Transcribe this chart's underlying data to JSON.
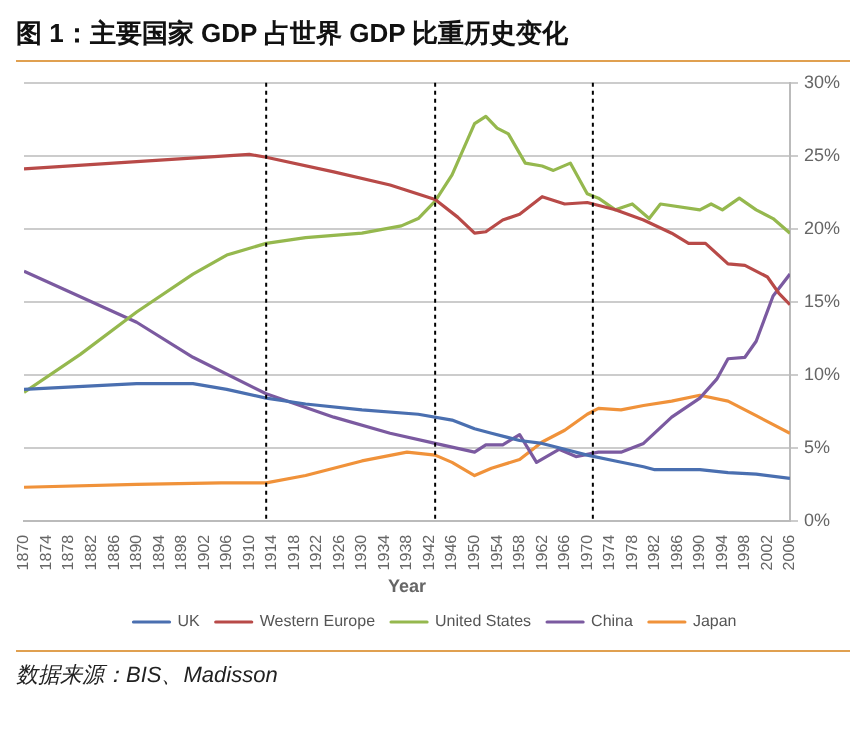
{
  "chart_data": {
    "type": "line",
    "title": "图 1：主要国家 GDP 占世界 GDP 比重历史变化",
    "xlabel": "Year",
    "annotations": [
      "数据来源：BIS、Madisson"
    ],
    "xlim": [
      1870,
      2006
    ],
    "xticks": [
      1870,
      1874,
      1878,
      1882,
      1886,
      1890,
      1894,
      1898,
      1902,
      1906,
      1910,
      1914,
      1918,
      1922,
      1926,
      1930,
      1934,
      1938,
      1942,
      1946,
      1950,
      1954,
      1958,
      1962,
      1966,
      1970,
      1974,
      1978,
      1982,
      1986,
      1990,
      1994,
      1998,
      2002,
      2006
    ],
    "ylim": [
      0,
      30
    ],
    "yticks": [
      {
        "value": 0,
        "label": "0%"
      },
      {
        "value": 5,
        "label": "5%"
      },
      {
        "value": 10,
        "label": "10%"
      },
      {
        "value": 15,
        "label": "15%"
      },
      {
        "value": 20,
        "label": "20%"
      },
      {
        "value": 25,
        "label": "25%"
      },
      {
        "value": 30,
        "label": "30%"
      }
    ],
    "grid": "y",
    "legend": "bottom",
    "marker": "none",
    "line_style": "solid",
    "ref_lines": [
      {
        "axis": "x",
        "value": 1913,
        "color": "#000000",
        "line_style": "dotted"
      },
      {
        "axis": "x",
        "value": 1943,
        "color": "#000000",
        "line_style": "dotted"
      },
      {
        "axis": "x",
        "value": 1971,
        "color": "#000000",
        "line_style": "dotted"
      }
    ],
    "series": [
      {
        "name": "UK",
        "color": "#4a6fb0",
        "x": [
          1870,
          1890,
          1900,
          1906,
          1913,
          1920,
          1930,
          1940,
          1946,
          1950,
          1953,
          1958,
          1962,
          1966,
          1970,
          1975,
          1980,
          1982,
          1990,
          1995,
          2000,
          2006
        ],
        "values": [
          9.0,
          9.4,
          9.4,
          9.0,
          8.4,
          8.0,
          7.6,
          7.3,
          6.9,
          6.3,
          6.0,
          5.5,
          5.3,
          4.9,
          4.5,
          4.1,
          3.7,
          3.5,
          3.5,
          3.3,
          3.2,
          2.9
        ]
      },
      {
        "name": "Western Europe",
        "color": "#b84a48",
        "x": [
          1870,
          1890,
          1910,
          1913,
          1925,
          1935,
          1943,
          1947,
          1950,
          1952,
          1955,
          1958,
          1962,
          1966,
          1970,
          1975,
          1980,
          1985,
          1988,
          1991,
          1995,
          1998,
          2002,
          2004,
          2006
        ],
        "values": [
          24.1,
          24.6,
          25.1,
          24.9,
          23.9,
          23.0,
          22.0,
          20.8,
          19.7,
          19.8,
          20.6,
          21.0,
          22.2,
          21.7,
          21.8,
          21.3,
          20.6,
          19.7,
          19.0,
          19.0,
          17.6,
          17.5,
          16.7,
          15.6,
          14.8
        ]
      },
      {
        "name": "United States",
        "color": "#95b84e",
        "x": [
          1870,
          1880,
          1890,
          1900,
          1906,
          1913,
          1920,
          1930,
          1937,
          1940,
          1943,
          1946,
          1950,
          1952,
          1954,
          1956,
          1959,
          1962,
          1964,
          1967,
          1970,
          1972,
          1975,
          1978,
          1981,
          1983,
          1990,
          1992,
          1994,
          1997,
          2000,
          2003,
          2006
        ],
        "values": [
          8.8,
          11.4,
          14.3,
          16.9,
          18.2,
          19.0,
          19.4,
          19.7,
          20.2,
          20.7,
          21.9,
          23.7,
          27.2,
          27.7,
          26.9,
          26.5,
          24.5,
          24.3,
          24.0,
          24.5,
          22.4,
          22.1,
          21.3,
          21.7,
          20.7,
          21.7,
          21.3,
          21.7,
          21.3,
          22.1,
          21.3,
          20.7,
          19.7
        ]
      },
      {
        "name": "China",
        "color": "#7b5aa0",
        "x": [
          1870,
          1890,
          1900,
          1913,
          1925,
          1935,
          1943,
          1950,
          1952,
          1955,
          1958,
          1961,
          1965,
          1968,
          1972,
          1976,
          1980,
          1985,
          1990,
          1993,
          1995,
          1998,
          2000,
          2003,
          2006
        ],
        "values": [
          17.1,
          13.6,
          11.2,
          8.7,
          7.1,
          6.0,
          5.3,
          4.7,
          5.2,
          5.2,
          5.9,
          4.0,
          4.9,
          4.4,
          4.7,
          4.7,
          5.3,
          7.1,
          8.4,
          9.7,
          11.1,
          11.2,
          12.3,
          15.4,
          16.9
        ]
      },
      {
        "name": "Japan",
        "color": "#f0923a",
        "x": [
          1870,
          1890,
          1905,
          1913,
          1920,
          1930,
          1938,
          1943,
          1946,
          1950,
          1953,
          1958,
          1962,
          1966,
          1970,
          1972,
          1976,
          1980,
          1985,
          1990,
          1995,
          2000,
          2006
        ],
        "values": [
          2.3,
          2.5,
          2.6,
          2.6,
          3.1,
          4.1,
          4.7,
          4.5,
          4.0,
          3.1,
          3.6,
          4.2,
          5.4,
          6.2,
          7.3,
          7.7,
          7.6,
          7.9,
          8.2,
          8.6,
          8.2,
          7.2,
          6.0
        ]
      }
    ]
  }
}
